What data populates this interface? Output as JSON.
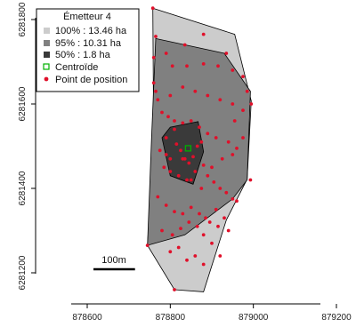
{
  "chart_data": {
    "type": "scatter",
    "title": "",
    "xlabel": "",
    "ylabel": "",
    "xlim": [
      878600,
      879200
    ],
    "ylim": [
      6281130,
      6281840
    ],
    "x_ticks": [
      878600,
      878800,
      879000,
      879200
    ],
    "x_tick_labels": [
      "878600",
      "878800",
      "879000",
      "879200"
    ],
    "y_ticks": [
      6281200,
      6281400,
      6281600,
      6281800
    ],
    "y_tick_labels": [
      "6281200",
      "6281400",
      "6281600",
      "6281800"
    ],
    "grid": false,
    "legend": {
      "title": "Émetteur 4",
      "placement": "top-left",
      "entries": [
        {
          "label": "100% :  13.46  ha",
          "marker": "square",
          "color": "#cccccc"
        },
        {
          "label": "95% :  10.31  ha",
          "marker": "square",
          "color": "#808080"
        },
        {
          "label": "50% :  1.8  ha",
          "marker": "square",
          "color": "#3a3a3a"
        },
        {
          "label": "Centroïde",
          "marker": "open-square",
          "color": "#00b000"
        },
        {
          "label": "Point de position",
          "marker": "dot",
          "color": "#e0102a"
        }
      ]
    },
    "polygons": [
      {
        "name": "100%",
        "fill": "#cccccc",
        "points": [
          [
            878758,
            6281827
          ],
          [
            878955,
            6281765
          ],
          [
            878995,
            6281607
          ],
          [
            878985,
            6281422
          ],
          [
            878935,
            6281325
          ],
          [
            878880,
            6281155
          ],
          [
            878810,
            6281160
          ],
          [
            878745,
            6281265
          ],
          [
            878760,
            6281510
          ]
        ]
      },
      {
        "name": "95%",
        "fill": "#808080",
        "points": [
          [
            878765,
            6281755
          ],
          [
            878930,
            6281720
          ],
          [
            878993,
            6281630
          ],
          [
            878985,
            6281420
          ],
          [
            878950,
            6281375
          ],
          [
            878835,
            6281290
          ],
          [
            878745,
            6281265
          ],
          [
            878755,
            6281520
          ]
        ]
      },
      {
        "name": "50%",
        "fill": "#3a3a3a",
        "points": [
          [
            878800,
            6281545
          ],
          [
            878867,
            6281558
          ],
          [
            878880,
            6281487
          ],
          [
            878855,
            6281410
          ],
          [
            878800,
            6281430
          ],
          [
            878780,
            6281520
          ]
        ]
      }
    ],
    "centroid": {
      "x": 878843,
      "y": 6281495,
      "color": "#00b000"
    },
    "points": {
      "color": "#e0102a",
      "x": [
        878758,
        878880,
        878935,
        878985,
        878995,
        878993,
        878950,
        878880,
        878810,
        878745,
        878765,
        878835,
        878790,
        878760,
        878805,
        878840,
        878880,
        878915,
        878950,
        878975,
        878760,
        878765,
        878770,
        878800,
        878830,
        878860,
        878890,
        878920,
        878950,
        878975,
        878780,
        878795,
        878810,
        878830,
        878850,
        878870,
        878890,
        878910,
        878940,
        878960,
        878775,
        878790,
        878800,
        878815,
        878825,
        878835,
        878845,
        878855,
        878865,
        878875,
        878785,
        878800,
        878820,
        878840,
        878860,
        878880,
        878890,
        878905,
        878920,
        878935,
        878770,
        878790,
        878810,
        878830,
        878850,
        878870,
        878895,
        878915,
        878940,
        878960,
        878780,
        878805,
        878825,
        878845,
        878865,
        878885,
        878910,
        878930,
        878955,
        878975,
        878790,
        878810,
        878830,
        878850,
        878875,
        878900,
        878925,
        878950,
        878800,
        878840,
        878880,
        878920,
        878820,
        878860,
        878900
      ],
      "y": [
        6281827,
        6281765,
        6281720,
        6281630,
        6281600,
        6281420,
        6281375,
        6281290,
        6281160,
        6281265,
        6281760,
        6281740,
        6281720,
        6281710,
        6281690,
        6281690,
        6281695,
        6281690,
        6281680,
        6281665,
        6281650,
        6281630,
        6281610,
        6281620,
        6281640,
        6281630,
        6281620,
        6281610,
        6281600,
        6281585,
        6281580,
        6281570,
        6281560,
        6281555,
        6281560,
        6281545,
        6281530,
        6281520,
        6281510,
        6281495,
        6281490,
        6281480,
        6281470,
        6281505,
        6281490,
        6281470,
        6281460,
        6281475,
        6281500,
        6281510,
        6281450,
        6281440,
        6281430,
        6281420,
        6281440,
        6281455,
        6281430,
        6281415,
        6281400,
        6281390,
        6281380,
        6281360,
        6281345,
        6281340,
        6281355,
        6281340,
        6281320,
        6281310,
        6281300,
        6281370,
        6281300,
        6281290,
        6281305,
        6281320,
        6281310,
        6281330,
        6281350,
        6281330,
        6281560,
        6281520,
        6281520,
        6281540,
        6281470,
        6281420,
        6281400,
        6281450,
        6281470,
        6281480,
        6281250,
        6281230,
        6281220,
        6281240,
        6281260,
        6281240,
        6281270
      ]
    }
  },
  "scale_bar": {
    "label": "100m",
    "length": 100
  }
}
